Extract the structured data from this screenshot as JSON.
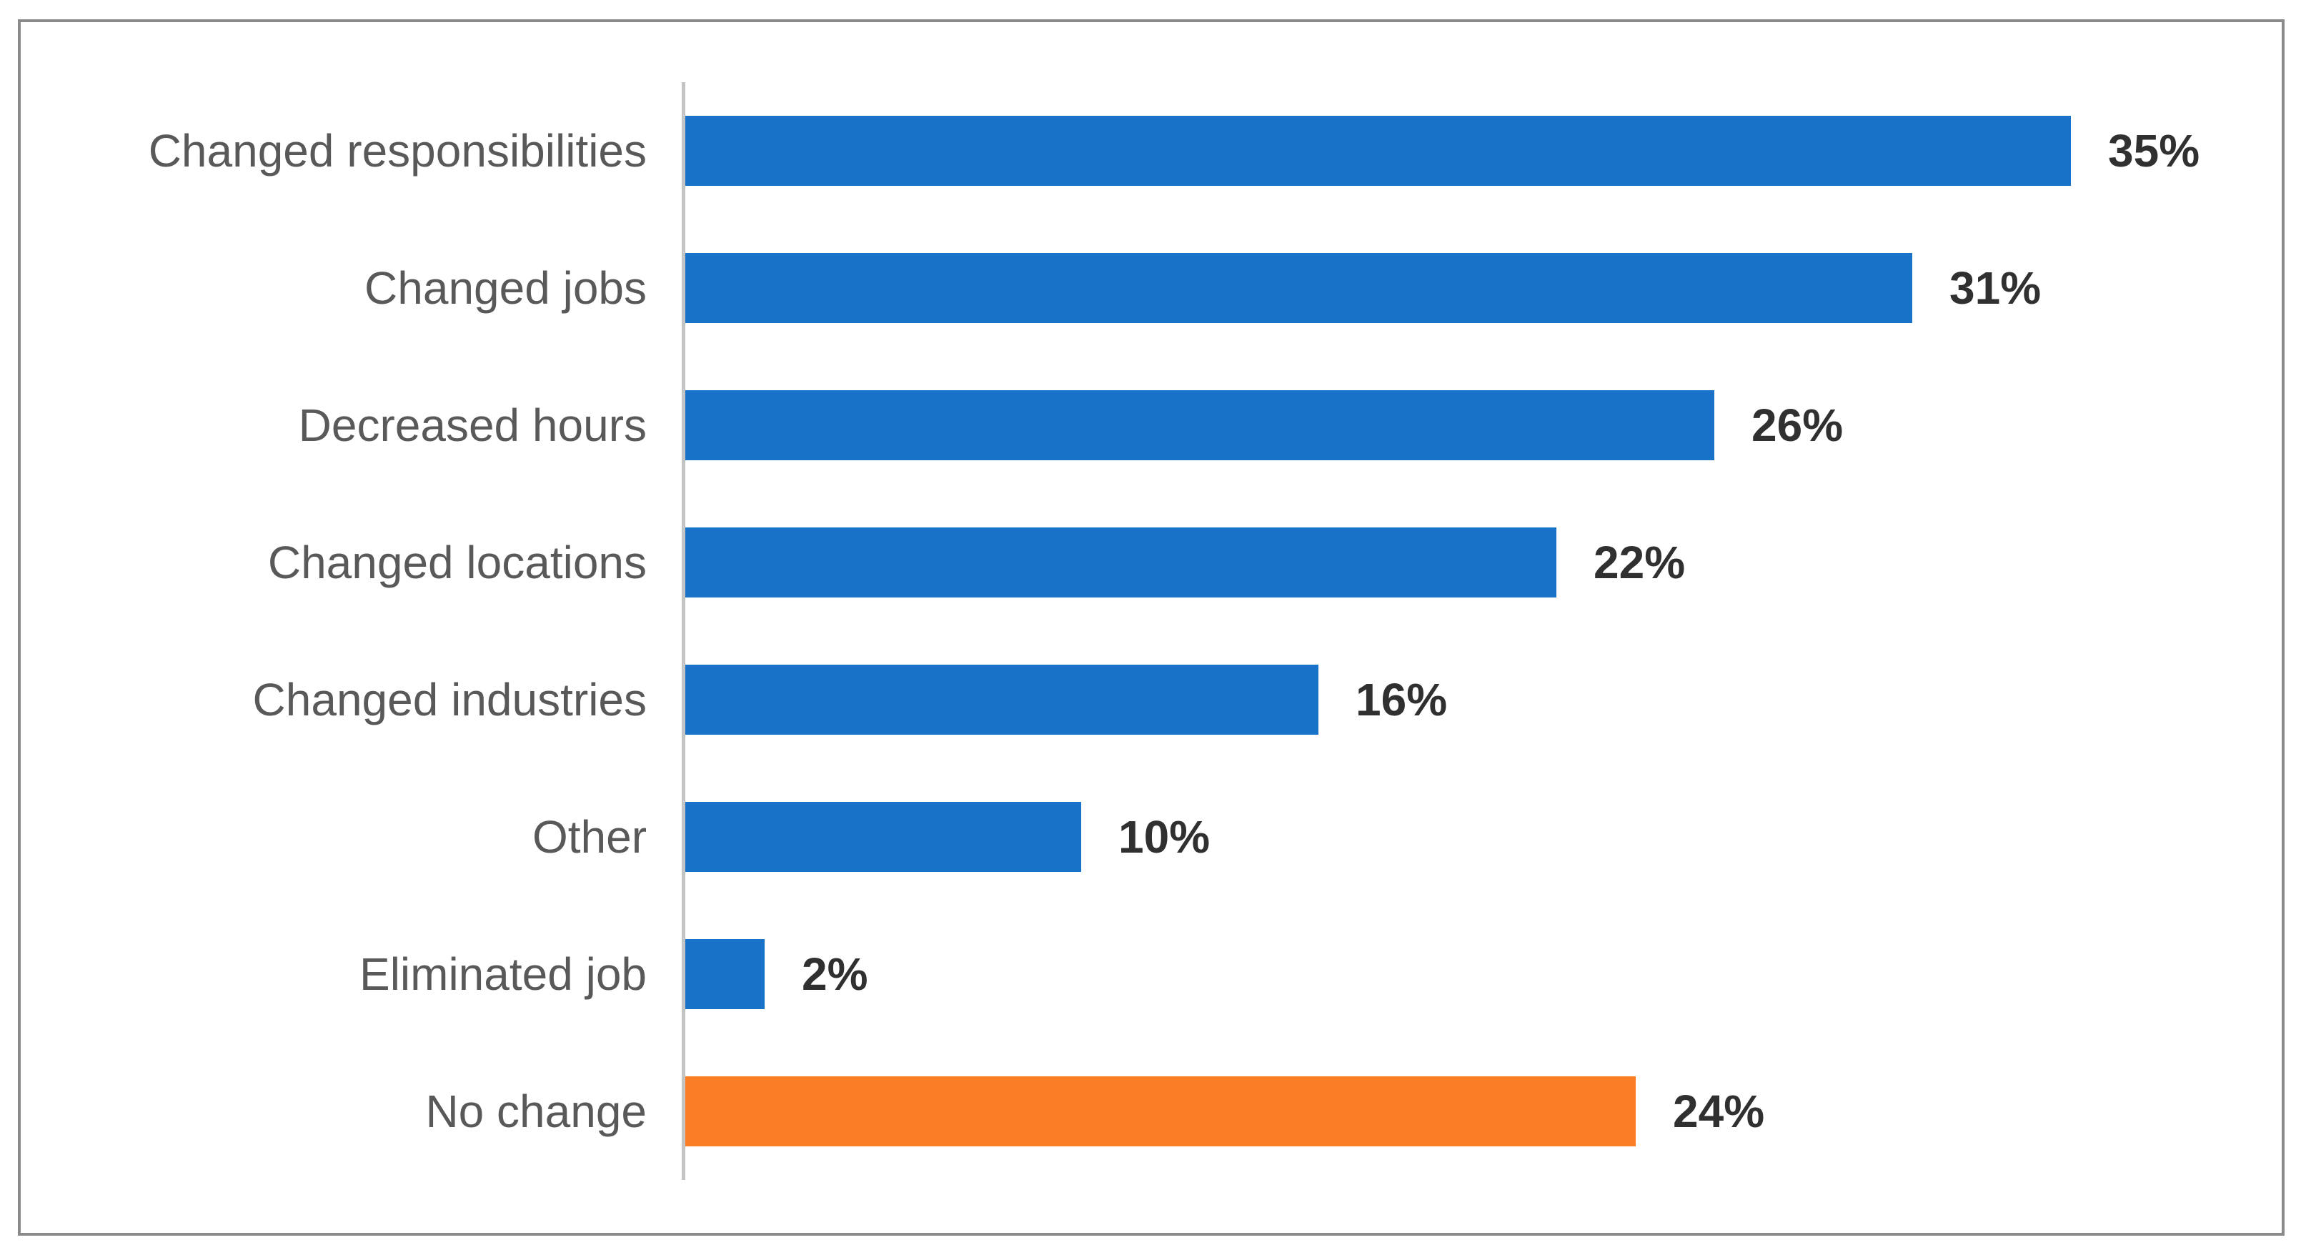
{
  "chart_data": {
    "type": "bar",
    "orientation": "horizontal",
    "title": "",
    "xlabel": "",
    "ylabel": "",
    "xlim": [
      0,
      40
    ],
    "grid": false,
    "legend": false,
    "categories": [
      "Changed responsibilities",
      "Changed jobs",
      "Decreased hours",
      "Changed locations",
      "Changed industries",
      "Other",
      "Eliminated job",
      "No change"
    ],
    "values": [
      35,
      31,
      26,
      22,
      16,
      10,
      2,
      24
    ],
    "value_labels": [
      "35%",
      "31%",
      "26%",
      "22%",
      "16%",
      "10%",
      "2%",
      "24%"
    ],
    "bar_colors": [
      "#1772c8",
      "#1772c8",
      "#1772c8",
      "#1772c8",
      "#1772c8",
      "#1772c8",
      "#1772c8",
      "#fb7e26"
    ],
    "accent_blue": "#1772c8",
    "accent_orange": "#fb7e26",
    "axis_line_color": "#c4c4c4",
    "frame_border_color": "#8a8a8a",
    "category_text_color": "#595959",
    "value_text_color": "#303030"
  }
}
